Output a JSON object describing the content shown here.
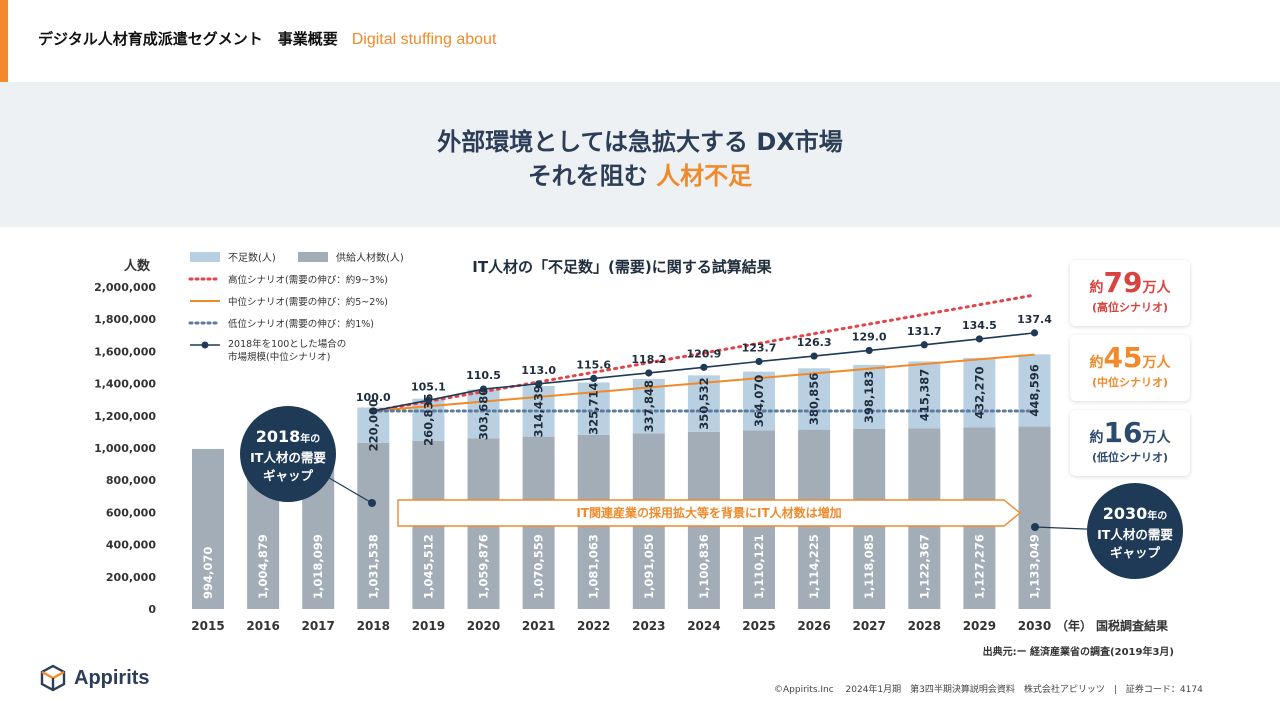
{
  "header": {
    "title": "デジタル人材育成派遣セグメント　事業概要",
    "subtitle": "Digital stuffing about"
  },
  "banner": {
    "line1": "外部環境としては急拡大する DX市場",
    "line2_prefix": "それを阻む ",
    "line2_highlight": "人材不足"
  },
  "colors": {
    "accent": "#f08a2b",
    "navy": "#1e3a56",
    "shortage_bar": "#b9d0e2",
    "supply_bar": "#a3adb7",
    "high_line": "#e0454a",
    "mid_line": "#f08a2b",
    "low_line": "#5c7a9c"
  },
  "chart_data": {
    "type": "bar",
    "title": "IT人材の「不足数」(需要)に関する試算結果",
    "ylabel": "人数",
    "xlabel_suffix": "（年）",
    "x_note": "国税調査結果",
    "ylim": [
      0,
      2000000
    ],
    "yticks": [
      "0",
      "200,000",
      "400,000",
      "600,000",
      "800,000",
      "1,000,000",
      "1,200,000",
      "1,400,000",
      "1,600,000",
      "1,800,000",
      "2,000,000"
    ],
    "categories": [
      "2015",
      "2016",
      "2017",
      "2018",
      "2019",
      "2020",
      "2021",
      "2022",
      "2023",
      "2024",
      "2025",
      "2026",
      "2027",
      "2028",
      "2029",
      "2030"
    ],
    "series": [
      {
        "name": "供給人材数(人)",
        "values": [
          994070,
          1004879,
          1018099,
          1031538,
          1045512,
          1059876,
          1070559,
          1081063,
          1091050,
          1100836,
          1110121,
          1114225,
          1118085,
          1122367,
          1127276,
          1133049
        ],
        "labels": [
          "994,070",
          "1,004,879",
          "1,018,099",
          "1,031,538",
          "1,045,512",
          "1,059,876",
          "1,070,559",
          "1,081,063",
          "1,091,050",
          "1,100,836",
          "1,110,121",
          "1,114,225",
          "1,118,085",
          "1,122,367",
          "1,127,276",
          "1,133,049"
        ]
      },
      {
        "name": "不足数(人)",
        "values": [
          null,
          null,
          null,
          220000,
          260835,
          303680,
          314439,
          325714,
          337848,
          350532,
          364070,
          380856,
          398183,
          415387,
          432270,
          448596
        ],
        "labels": [
          "",
          "",
          "",
          "220,000",
          "260,835",
          "303,680",
          "314,439",
          "325,714",
          "337,848",
          "350,532",
          "364,070",
          "380,856",
          "398,183",
          "415,387",
          "432,270",
          "448,596"
        ]
      }
    ],
    "lines": {
      "high": {
        "name": "高位シナリオ(需要の伸び：約9~3%)",
        "start": 1230000,
        "end": 1950000
      },
      "mid": {
        "name": "中位シナリオ(需要の伸び：約5~2%)",
        "start": 1230000,
        "end": 1580000
      },
      "low": {
        "name": "低位シナリオ(需要の伸び：約1%)",
        "start": 1230000,
        "end": 1230000
      },
      "index": {
        "name_line1": "2018年を100とした場合の",
        "name_line2": "市場規模(中位シナリオ)",
        "values": [
          100.0,
          105.1,
          110.5,
          113.0,
          115.6,
          118.2,
          120.9,
          123.7,
          126.3,
          129.0,
          131.7,
          134.5,
          137.4
        ],
        "labels": [
          "100.0",
          "105.1",
          "110.5",
          "113.0",
          "115.6",
          "118.2",
          "120.9",
          "123.7",
          "126.3",
          "129.0",
          "131.7",
          "134.5",
          "137.4"
        ]
      }
    },
    "arrow_text": "IT関連産業の採用拡大等を背景にIT人材数は増加",
    "gap_2018": {
      "big": "2018",
      "suffix": "年の",
      "line2": "IT人材の需要",
      "line3": "ギャップ"
    },
    "gap_2030": {
      "big": "2030",
      "suffix": "年の",
      "line2": "IT人材の需要",
      "line3": "ギャップ"
    }
  },
  "callouts": [
    {
      "prefix": "約",
      "num": "79",
      "unit": "万人",
      "scenario": "(高位シナリオ)"
    },
    {
      "prefix": "約",
      "num": "45",
      "unit": "万人",
      "scenario": "(中位シナリオ)"
    },
    {
      "prefix": "約",
      "num": "16",
      "unit": "万人",
      "scenario": "(低位シナリオ)"
    }
  ],
  "source": "出典元:ー 経済産業省の調査(2019年3月)",
  "logo": {
    "name": "Appirits"
  },
  "footer": "©Appirits.Inc　 2024年1月期　第3四半期決算説明会資料　株式会社アピリッツ　|　証券コード：4174"
}
